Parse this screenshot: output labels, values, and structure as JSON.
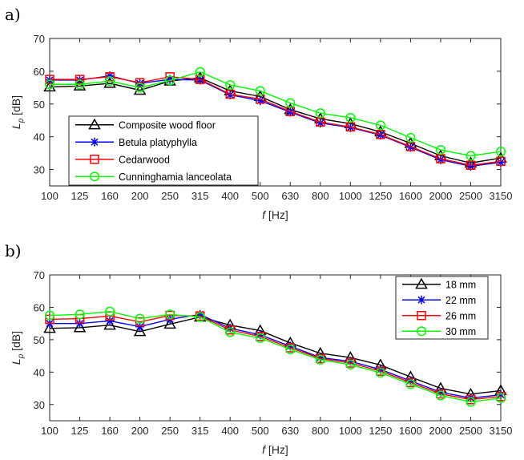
{
  "figure": {
    "panel_labels": [
      "a)",
      "b)"
    ]
  },
  "chart_data": [
    {
      "type": "line",
      "panel_label": "a)",
      "title": "",
      "xlabel_italic": "f",
      "xlabel_unit": " [Hz]",
      "ylabel_main": "L",
      "ylabel_sub": "p",
      "ylabel_unit": " [dB]",
      "categories": [
        "100",
        "125",
        "160",
        "200",
        "250",
        "315",
        "400",
        "500",
        "630",
        "800",
        "1000",
        "1250",
        "1600",
        "2000",
        "2500",
        "3150"
      ],
      "ylim": [
        25,
        70
      ],
      "yticks": [
        30,
        40,
        50,
        60,
        70
      ],
      "grid": false,
      "legend_position": "lower-left",
      "series": [
        {
          "name": "Composite wood floor",
          "color": "#000000",
          "marker": "triangle",
          "values": [
            55.2,
            55.5,
            56.3,
            54.2,
            57.0,
            58.0,
            54.0,
            52.3,
            48.3,
            45.5,
            44.0,
            41.5,
            38.0,
            34.2,
            32.0,
            33.5
          ]
        },
        {
          "name": "Betula platyphylla",
          "color": "#0000ff",
          "marker": "star",
          "values": [
            57.3,
            57.3,
            58.6,
            56.3,
            57.5,
            57.3,
            52.8,
            51.0,
            47.5,
            44.2,
            42.8,
            40.5,
            36.8,
            33.0,
            31.0,
            32.2
          ]
        },
        {
          "name": "Cedarwood",
          "color": "#ff0000",
          "marker": "square",
          "values": [
            57.5,
            57.5,
            58.3,
            56.5,
            58.3,
            57.5,
            53.0,
            51.5,
            47.7,
            44.5,
            43.0,
            40.7,
            37.0,
            33.3,
            31.3,
            32.5
          ]
        },
        {
          "name": "Cunninghamia lanceolata",
          "color": "#00ff00",
          "marker": "circle",
          "values": [
            56.0,
            56.0,
            57.0,
            55.0,
            57.2,
            59.8,
            55.8,
            54.0,
            50.3,
            47.2,
            45.8,
            43.5,
            39.7,
            36.0,
            34.2,
            35.5
          ]
        }
      ]
    },
    {
      "type": "line",
      "panel_label": "b)",
      "title": "",
      "xlabel_italic": "f",
      "xlabel_unit": " [Hz]",
      "ylabel_main": "L",
      "ylabel_sub": "p",
      "ylabel_unit": " [dB]",
      "categories": [
        "100",
        "125",
        "160",
        "200",
        "250",
        "315",
        "400",
        "500",
        "630",
        "800",
        "1000",
        "1250",
        "1600",
        "2000",
        "2500",
        "3150"
      ],
      "ylim": [
        25,
        70
      ],
      "yticks": [
        30,
        40,
        50,
        60,
        70
      ],
      "grid": false,
      "legend_position": "top-right",
      "series": [
        {
          "name": "18 mm",
          "color": "#000000",
          "marker": "triangle",
          "values": [
            53.5,
            53.7,
            54.5,
            52.5,
            54.8,
            57.0,
            54.5,
            52.8,
            49.0,
            45.8,
            44.5,
            42.2,
            38.5,
            35.0,
            33.2,
            34.3
          ]
        },
        {
          "name": "22 mm",
          "color": "#0000ff",
          "marker": "star",
          "values": [
            55.0,
            55.0,
            55.8,
            54.0,
            56.3,
            57.8,
            53.5,
            51.5,
            48.0,
            44.5,
            43.3,
            40.8,
            37.3,
            33.8,
            32.0,
            33.0
          ]
        },
        {
          "name": "26 mm",
          "color": "#ff0000",
          "marker": "square",
          "values": [
            56.3,
            56.5,
            57.3,
            55.5,
            57.5,
            57.3,
            53.0,
            51.0,
            47.5,
            44.2,
            42.8,
            40.3,
            36.8,
            33.3,
            31.5,
            32.5
          ]
        },
        {
          "name": "30 mm",
          "color": "#00ff00",
          "marker": "circle",
          "values": [
            57.5,
            57.8,
            58.7,
            56.5,
            57.8,
            57.0,
            52.3,
            50.5,
            47.0,
            43.8,
            42.3,
            39.8,
            36.3,
            32.8,
            30.8,
            32.0
          ]
        }
      ]
    }
  ]
}
